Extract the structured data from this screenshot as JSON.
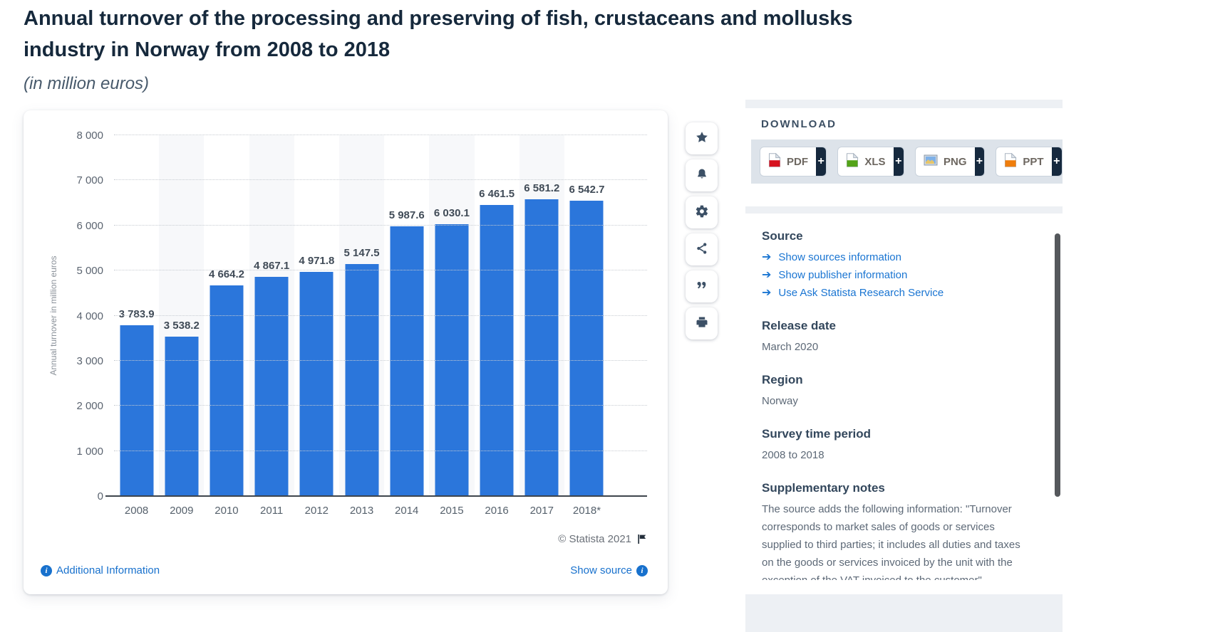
{
  "page": {
    "title_line1": "Annual turnover of the processing and preserving of fish, crustaceans and mollusks",
    "title_line2": "industry in Norway from 2008 to 2018",
    "subtitle": "(in million euros)"
  },
  "chart_data": {
    "type": "bar",
    "title": "Annual turnover of the processing and preserving of fish, crustaceans and mollusks industry in Norway from 2008 to 2018",
    "subtitle": "(in million euros)",
    "categories": [
      "2008",
      "2009",
      "2010",
      "2011",
      "2012",
      "2013",
      "2014",
      "2015",
      "2016",
      "2017",
      "2018*"
    ],
    "values": [
      3783.9,
      3538.2,
      4664.2,
      4867.1,
      4971.8,
      5147.5,
      5987.6,
      6030.1,
      6461.5,
      6581.2,
      6542.7
    ],
    "value_labels": [
      "3 783.9",
      "3 538.2",
      "4 664.2",
      "4 867.1",
      "4 971.8",
      "5 147.5",
      "5 987.6",
      "6 030.1",
      "6 461.5",
      "6 581.2",
      "6 542.7"
    ],
    "xlabel": "",
    "ylabel": "Annual turnover in million euros",
    "ylim": [
      0,
      8000
    ],
    "ytick_interval": 1000,
    "ytick_labels": [
      "0",
      "1 000",
      "2 000",
      "3 000",
      "4 000",
      "5 000",
      "6 000",
      "7 000",
      "8 000"
    ],
    "grid": "horizontal dotted",
    "legend": "none",
    "bar_color": "#2b76db"
  },
  "chart_footer": {
    "copyright": "© Statista 2021",
    "additional_info_label": "Additional Information",
    "show_source_label": "Show source",
    "info_glyph": "i"
  },
  "toolbar": {
    "items": [
      {
        "label": "favorite",
        "icon": "star-icon"
      },
      {
        "label": "alerts",
        "icon": "bell-icon"
      },
      {
        "label": "settings",
        "icon": "gear-icon"
      },
      {
        "label": "share",
        "icon": "share-icon"
      },
      {
        "label": "cite",
        "icon": "quote-icon"
      },
      {
        "label": "print",
        "icon": "printer-icon"
      }
    ]
  },
  "download": {
    "heading": "DOWNLOAD",
    "plus_label": "+",
    "buttons": [
      {
        "label": "PDF",
        "icon": "pdf-file-icon",
        "color": "#d6121f"
      },
      {
        "label": "XLS",
        "icon": "xls-file-icon",
        "color": "#53a318"
      },
      {
        "label": "PNG",
        "icon": "png-image-icon",
        "color": "#7fb1e8"
      },
      {
        "label": "PPT",
        "icon": "ppt-file-icon",
        "color": "#ef7d0c"
      }
    ]
  },
  "details": {
    "source_heading": "Source",
    "source_links": [
      "Show sources information",
      "Show publisher information",
      "Use Ask Statista Research Service"
    ],
    "release_date_heading": "Release date",
    "release_date": "March 2020",
    "region_heading": "Region",
    "region": "Norway",
    "survey_heading": "Survey time period",
    "survey_period": "2008 to 2018",
    "notes_heading": "Supplementary notes",
    "notes_text": "The source adds the following information: \"Turnover corresponds to market sales of goods or services supplied to third parties; it includes all duties and taxes on the goods or services invoiced by the unit with the exception of the VAT invoiced to the customer\""
  },
  "colors": {
    "bar": "#2b76db",
    "link_blue": "#1a75d2",
    "heading_navy": "#33475c",
    "panel_gray": "#edf0f4",
    "strip_gray": "#dde3ea",
    "plus_navy": "#16293e"
  }
}
